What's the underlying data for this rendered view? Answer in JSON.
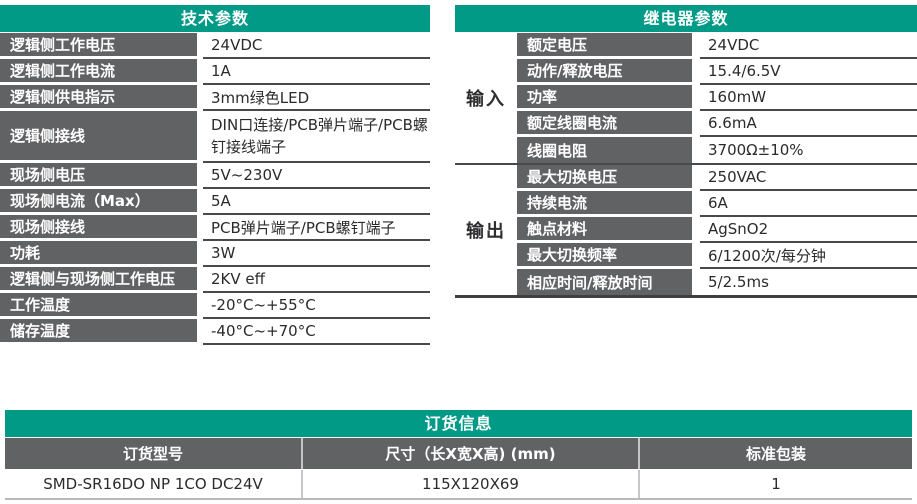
{
  "colors": {
    "accent_teal": "#009a86",
    "cell_gray": "#616264",
    "value_text": "#2b2a2c",
    "row_line": "#48494b",
    "divider_light": "#c6c6c8"
  },
  "tech_table": {
    "title": "技术参数",
    "rows": [
      {
        "label": "逻辑侧工作电压",
        "value": "24VDC"
      },
      {
        "label": "逻辑侧工作电流",
        "value": "1A"
      },
      {
        "label": "逻辑侧供电指示",
        "value": "3mm绿色LED"
      },
      {
        "label": "逻辑侧接线",
        "value": "DIN口连接/PCB弹片端子/PCB螺钉接线端子",
        "tall": true
      },
      {
        "label": "现场侧电压",
        "value": "5V~230V"
      },
      {
        "label": "现场侧电流（Max）",
        "value": "5A"
      },
      {
        "label": "现场侧接线",
        "value": "PCB弹片端子/PCB螺钉端子"
      },
      {
        "label": "功耗",
        "value": "3W"
      },
      {
        "label": "逻辑侧与现场侧工作电压",
        "value": "2KV eff"
      },
      {
        "label": "工作温度",
        "value": "-20°C~+55°C"
      },
      {
        "label": "储存温度",
        "value": "-40°C~+70°C"
      }
    ]
  },
  "relay_table": {
    "title": "继电器参数",
    "groups": [
      {
        "name": "输入",
        "rows": [
          {
            "label": "额定电压",
            "value": "24VDC"
          },
          {
            "label": "动作/释放电压",
            "value": "15.4/6.5V"
          },
          {
            "label": "功率",
            "value": "160mW"
          },
          {
            "label": "额定线圈电流",
            "value": "6.6mA"
          },
          {
            "label": "线圈电阻",
            "value": "3700Ω±10%"
          }
        ]
      },
      {
        "name": "输出",
        "rows": [
          {
            "label": "最大切换电压",
            "value": "250VAC"
          },
          {
            "label": "持续电流",
            "value": "6A"
          },
          {
            "label": "触点材料",
            "value": "AgSnO2"
          },
          {
            "label": "最大切换频率",
            "value": "6/1200次/每分钟"
          },
          {
            "label": "相应时间/释放时间",
            "value": "5/2.5ms"
          }
        ]
      }
    ]
  },
  "order_table": {
    "title": "订货信息",
    "columns": [
      "订货型号",
      "尺寸（长X宽X高) (mm)",
      "标准包装"
    ],
    "rows": [
      [
        "SMD-SR16DO NP 1CO DC24V",
        "115X120X69",
        "1"
      ]
    ]
  }
}
